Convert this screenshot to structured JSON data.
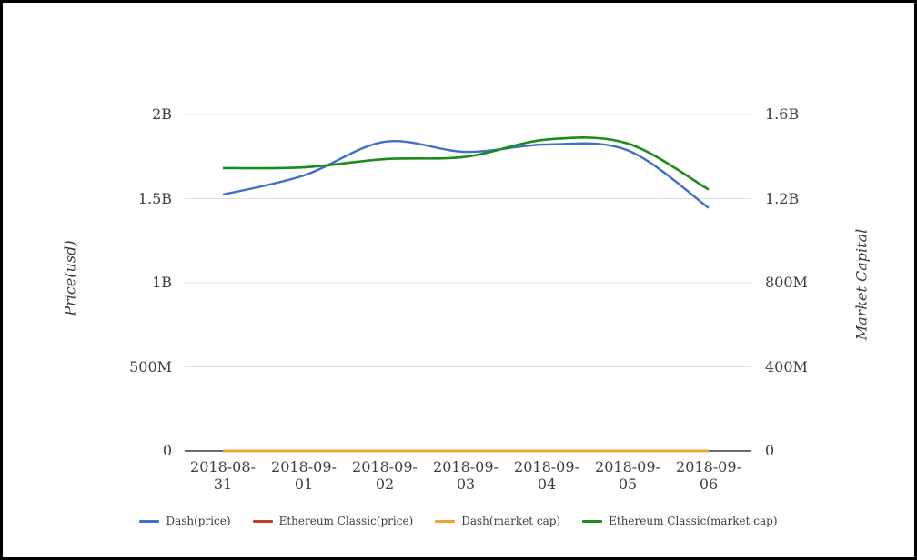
{
  "chart_data": {
    "type": "line",
    "title": "",
    "x_categories": [
      "2018-08-31",
      "2018-09-01",
      "2018-09-02",
      "2018-09-03",
      "2018-09-04",
      "2018-09-05",
      "2018-09-06"
    ],
    "left_axis": {
      "label": "Price(usd)",
      "ticks_bottom_to_top": [
        "0",
        "500M",
        "1B",
        "1.5B",
        "2B"
      ],
      "range_billions": [
        0,
        2.0
      ]
    },
    "right_axis": {
      "label": "Market Capital",
      "ticks_bottom_to_top": [
        "0",
        "400M",
        "800M",
        "1.2B",
        "1.6B"
      ],
      "range_billions": [
        0,
        1.6
      ]
    },
    "grid": true,
    "legend_position": "bottom",
    "series": [
      {
        "name": "Dash(price)",
        "axis": "left",
        "color": "#3f6fc6",
        "line_width": 2.4,
        "values_billions": [
          1.524,
          1.638,
          1.838,
          1.778,
          1.822,
          1.787,
          1.445
        ]
      },
      {
        "name": "Ethereum Classic(price)",
        "axis": "left",
        "color": "#bb4226",
        "line_width": 2.4,
        "values_billions": [
          0,
          0,
          0,
          0,
          0,
          0,
          0
        ]
      },
      {
        "name": "Dash(market cap)",
        "axis": "right",
        "color": "#f2a232",
        "line_width": 3,
        "values_billions": [
          0,
          0,
          0,
          0,
          0,
          0,
          0
        ]
      },
      {
        "name": "Ethereum Classic(market cap)",
        "axis": "right",
        "color": "#198c19",
        "line_width": 2.6,
        "values_billions": [
          1.345,
          1.349,
          1.388,
          1.399,
          1.481,
          1.462,
          1.243
        ]
      }
    ],
    "colors": {
      "grid_line": "#dedede",
      "axis_line": "#383838",
      "text": "#3d3d3d"
    }
  }
}
